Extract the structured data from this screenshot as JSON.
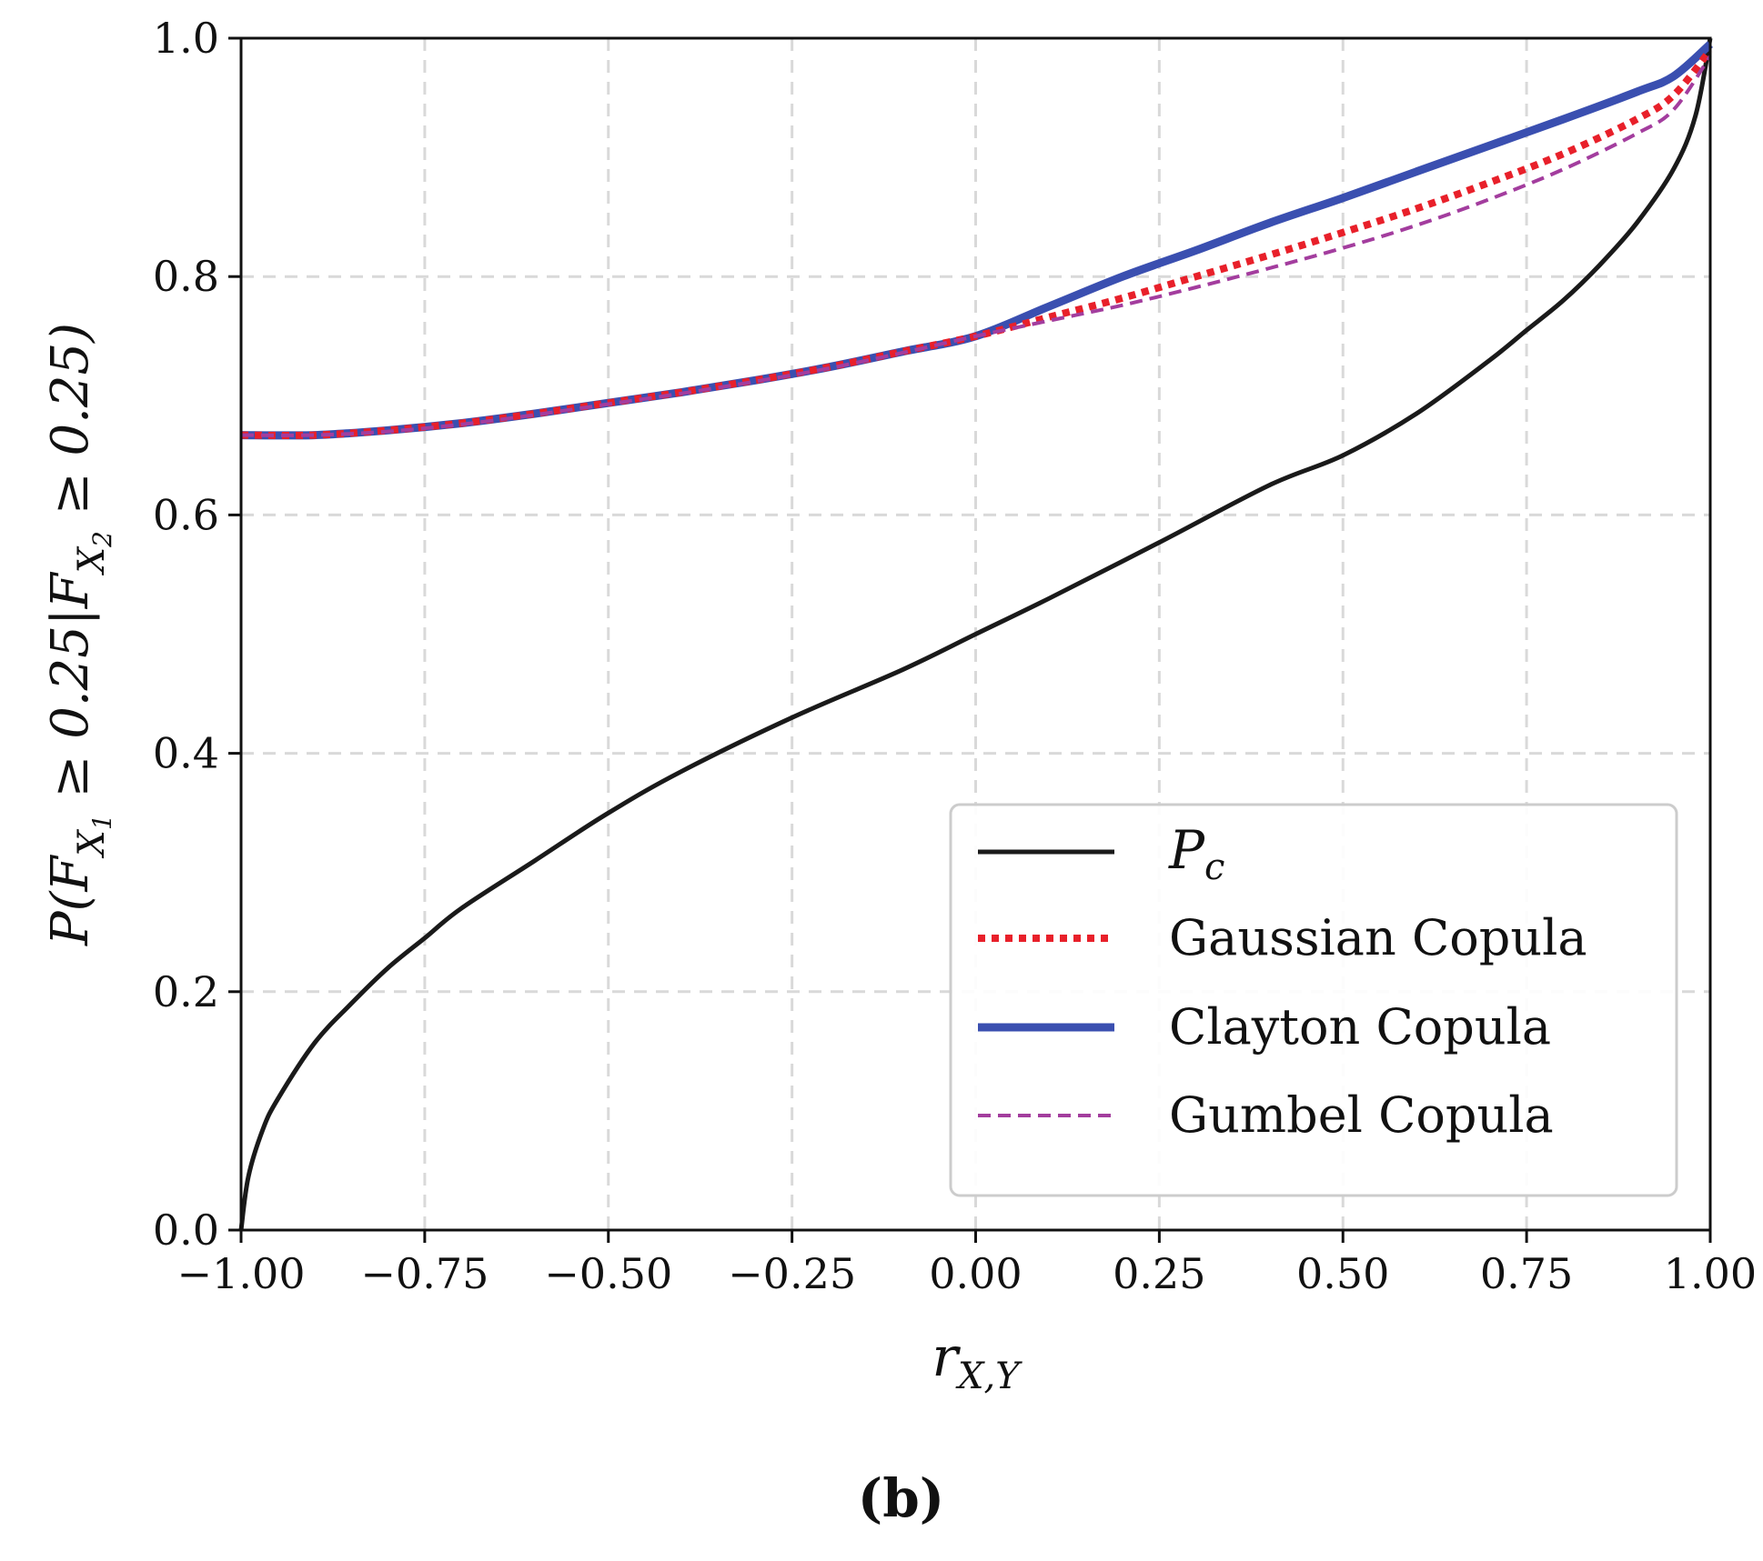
{
  "chart_data": {
    "type": "line",
    "xlabel": "r_{X,Y}",
    "ylabel": "P(F_{X_1} ≥ 0.25 | F_{X_2} ≥ 0.25)",
    "xlim": [
      -1.0,
      1.0
    ],
    "ylim": [
      0.0,
      1.0
    ],
    "xticks": [
      "−1.00",
      "−0.75",
      "−0.50",
      "−0.25",
      "0.00",
      "0.25",
      "0.50",
      "0.75",
      "1.00"
    ],
    "yticks": [
      "0.0",
      "0.2",
      "0.4",
      "0.6",
      "0.8",
      "1.0"
    ],
    "grid": true,
    "legend_position": "lower-right",
    "caption": "(b)",
    "series": [
      {
        "name": "P_c",
        "legend_label": "P",
        "legend_sub": "c",
        "color": "#1a1a1a",
        "style": "solid",
        "x": [
          -1.0,
          -0.99,
          -0.97,
          -0.95,
          -0.9,
          -0.85,
          -0.8,
          -0.75,
          -0.7,
          -0.6,
          -0.5,
          -0.4,
          -0.25,
          -0.1,
          0.0,
          0.1,
          0.25,
          0.4,
          0.5,
          0.6,
          0.7,
          0.75,
          0.8,
          0.85,
          0.9,
          0.95,
          0.98,
          1.0
        ],
        "y": [
          0.0,
          0.045,
          0.085,
          0.11,
          0.157,
          0.19,
          0.22,
          0.245,
          0.27,
          0.31,
          0.35,
          0.385,
          0.43,
          0.47,
          0.5,
          0.53,
          0.577,
          0.625,
          0.65,
          0.685,
          0.73,
          0.755,
          0.78,
          0.81,
          0.845,
          0.89,
          0.935,
          1.0
        ]
      },
      {
        "name": "Gaussian Copula",
        "color": "#e8202a",
        "style": "dotted",
        "x": [
          -1.0,
          -0.9,
          -0.8,
          -0.7,
          -0.6,
          -0.5,
          -0.4,
          -0.3,
          -0.2,
          -0.1,
          0.0,
          0.1,
          0.2,
          0.3,
          0.4,
          0.5,
          0.6,
          0.7,
          0.8,
          0.9,
          0.95,
          1.0
        ],
        "y": [
          0.667,
          0.667,
          0.671,
          0.677,
          0.685,
          0.694,
          0.703,
          0.713,
          0.724,
          0.737,
          0.75,
          0.766,
          0.782,
          0.8,
          0.818,
          0.837,
          0.857,
          0.879,
          0.903,
          0.932,
          0.952,
          0.99
        ]
      },
      {
        "name": "Clayton Copula",
        "color": "#3a4fb0",
        "style": "solid-thick",
        "x": [
          -1.0,
          -0.9,
          -0.8,
          -0.7,
          -0.6,
          -0.5,
          -0.4,
          -0.3,
          -0.2,
          -0.1,
          0.0,
          0.1,
          0.2,
          0.3,
          0.4,
          0.5,
          0.6,
          0.7,
          0.8,
          0.9,
          0.95,
          1.0
        ],
        "y": [
          0.667,
          0.667,
          0.671,
          0.677,
          0.685,
          0.694,
          0.703,
          0.713,
          0.724,
          0.737,
          0.75,
          0.775,
          0.8,
          0.822,
          0.845,
          0.866,
          0.888,
          0.91,
          0.932,
          0.955,
          0.968,
          0.995
        ]
      },
      {
        "name": "Gumbel Copula",
        "color": "#a33d9e",
        "style": "dashed",
        "x": [
          -1.0,
          -0.9,
          -0.8,
          -0.7,
          -0.6,
          -0.5,
          -0.4,
          -0.3,
          -0.2,
          -0.1,
          0.0,
          0.1,
          0.2,
          0.3,
          0.4,
          0.5,
          0.6,
          0.7,
          0.8,
          0.9,
          0.95,
          1.0
        ],
        "y": [
          0.667,
          0.667,
          0.67,
          0.676,
          0.684,
          0.693,
          0.702,
          0.712,
          0.723,
          0.736,
          0.75,
          0.763,
          0.776,
          0.791,
          0.807,
          0.824,
          0.843,
          0.865,
          0.89,
          0.92,
          0.94,
          0.985
        ]
      }
    ]
  }
}
